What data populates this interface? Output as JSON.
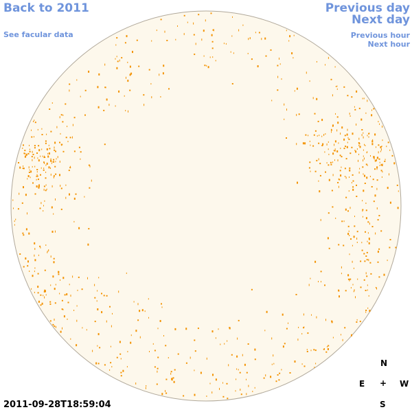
{
  "nav": {
    "back_label": "Back to 2011",
    "facular_label": "See facular data",
    "prev_day_label": "Previous day",
    "next_day_label": "Next day",
    "prev_hour_label": "Previous hour",
    "next_hour_label": "Next hour"
  },
  "compass": {
    "north": "N",
    "east": "E",
    "center": "+",
    "west": "W",
    "south": "S"
  },
  "timestamp": "2011-09-28T18:59:04",
  "colors": {
    "link": "#6f94dc",
    "disk_fill": "#fdf8ec",
    "disk_border": "#b0a89a",
    "facula": "#f39200"
  }
}
